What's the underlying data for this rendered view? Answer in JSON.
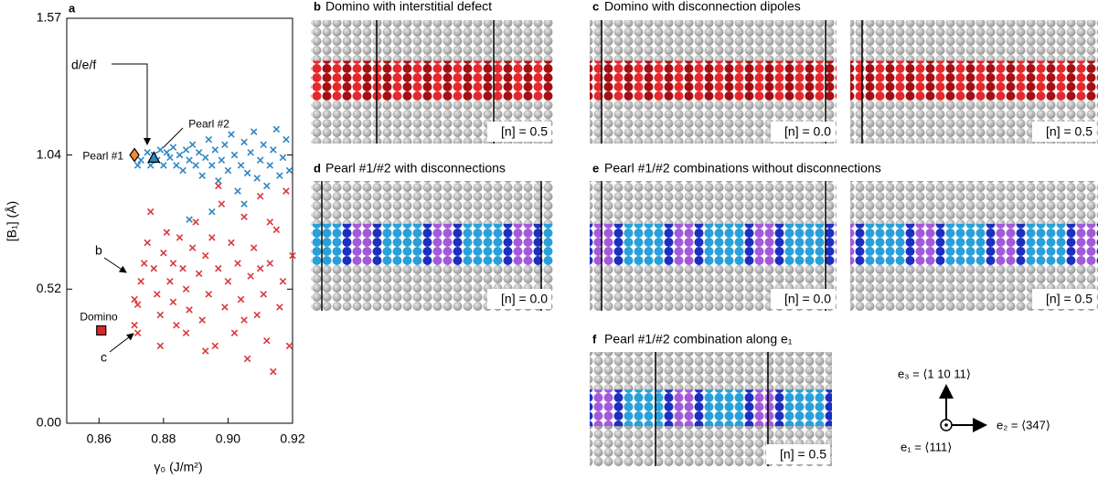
{
  "chart_data": {
    "type": "scatter",
    "panel_letter": "a",
    "xlabel": "γ₀ (J/m²)",
    "ylabel": "[B₁] (Å)",
    "xlim": [
      0.85,
      0.92
    ],
    "ylim": [
      0,
      1.57
    ],
    "xticks": [
      0.86,
      0.88,
      {
        "value": 0.9,
        "label": "0.90"
      },
      0.92
    ],
    "yticks": [
      {
        "value": 0,
        "label": "0.00"
      },
      0.52,
      1.04,
      1.57
    ],
    "series": [
      {
        "color": "#2f86c4",
        "x": [
          0.872,
          0.873,
          0.875,
          0.876,
          0.877,
          0.878,
          0.879,
          0.88,
          0.881,
          0.882,
          0.883,
          0.884,
          0.885,
          0.886,
          0.887,
          0.888,
          0.889,
          0.89,
          0.891,
          0.892,
          0.893,
          0.894,
          0.895,
          0.896,
          0.897,
          0.898,
          0.899,
          0.9,
          0.901,
          0.902,
          0.903,
          0.904,
          0.905,
          0.906,
          0.907,
          0.908,
          0.909,
          0.91,
          0.911,
          0.912,
          0.913,
          0.914,
          0.915,
          0.916,
          0.917,
          0.918,
          0.919,
          0.888,
          0.895,
          0.905
        ],
        "values": [
          1.0,
          1.02,
          1.05,
          1.0,
          1.04,
          1.02,
          1.06,
          1.0,
          1.05,
          1.03,
          1.07,
          1.0,
          1.04,
          0.98,
          1.06,
          1.02,
          1.08,
          1.0,
          1.05,
          0.96,
          1.03,
          1.1,
          1.0,
          1.06,
          0.94,
          1.02,
          1.08,
          0.98,
          1.12,
          1.04,
          0.9,
          1.0,
          1.09,
          0.97,
          1.05,
          1.13,
          0.95,
          1.02,
          1.08,
          0.92,
          1.0,
          1.06,
          1.14,
          0.96,
          1.03,
          1.1,
          0.98,
          0.79,
          0.82,
          0.85
        ]
      },
      {
        "color": "#d93a3a",
        "x": [
          0.871,
          0.872,
          0.871,
          0.872,
          0.873,
          0.874,
          0.875,
          0.876,
          0.877,
          0.878,
          0.879,
          0.88,
          0.881,
          0.882,
          0.883,
          0.884,
          0.885,
          0.886,
          0.887,
          0.888,
          0.889,
          0.89,
          0.891,
          0.892,
          0.893,
          0.894,
          0.895,
          0.896,
          0.897,
          0.898,
          0.899,
          0.9,
          0.901,
          0.902,
          0.903,
          0.904,
          0.905,
          0.906,
          0.907,
          0.908,
          0.909,
          0.91,
          0.911,
          0.912,
          0.913,
          0.914,
          0.915,
          0.916,
          0.917,
          0.918,
          0.919,
          0.92,
          0.913,
          0.897,
          0.887,
          0.893,
          0.905,
          0.91,
          0.883,
          0.879
        ],
        "values": [
          0.48,
          0.46,
          0.38,
          0.35,
          0.55,
          0.62,
          0.7,
          0.82,
          0.6,
          0.5,
          0.42,
          0.66,
          0.74,
          0.55,
          0.47,
          0.38,
          0.72,
          0.6,
          0.52,
          0.44,
          0.68,
          0.78,
          0.58,
          0.4,
          0.65,
          0.5,
          0.72,
          0.3,
          0.6,
          0.85,
          0.45,
          0.55,
          0.7,
          0.35,
          0.62,
          0.48,
          0.8,
          0.25,
          0.57,
          0.68,
          0.42,
          0.88,
          0.5,
          0.32,
          0.62,
          0.2,
          0.75,
          0.45,
          0.55,
          0.9,
          0.3,
          0.65,
          0.78,
          0.92,
          0.35,
          0.28,
          0.4,
          0.6,
          0.62,
          0.3
        ]
      }
    ],
    "markers": [
      {
        "label": "Domino",
        "x": 0.8607,
        "y": 0.36,
        "shape": "square",
        "color": "#d42a2a"
      },
      {
        "label": "Pearl #1",
        "x": 0.871,
        "y": 1.04,
        "shape": "diamond",
        "color": "#f28c28"
      },
      {
        "label": "Pearl #2",
        "x": 0.877,
        "y": 1.03,
        "shape": "triangle",
        "color": "#2f86c4"
      }
    ],
    "annotations": [
      "b",
      "c",
      "d/e/f"
    ]
  },
  "panels": [
    {
      "letter": "b",
      "title": "Domino with interstitial defect",
      "insets": [
        "[n] = 0.5"
      ]
    },
    {
      "letter": "c",
      "title": "Domino with disconnection dipoles",
      "insets": [
        "[n] = 0.0",
        "[n] = 0.5"
      ]
    },
    {
      "letter": "d",
      "title": "Pearl #1/#2 with disconnections",
      "insets": [
        "[n] = 0.0"
      ]
    },
    {
      "letter": "e",
      "title": "Pearl #1/#2 combinations without disconnections",
      "insets": [
        "[n] = 0.0",
        "[n] = 0.5"
      ]
    },
    {
      "letter": "f",
      "title": "Pearl #1/#2 combination along e₁",
      "insets": [
        "[n] = 0.5"
      ]
    }
  ],
  "axes_key": {
    "e3": "e₃ = ⟨1 10 11⟩",
    "e2": "e₂ = ⟨347⟩",
    "e1": "e₁ = ⟨111⟩"
  }
}
